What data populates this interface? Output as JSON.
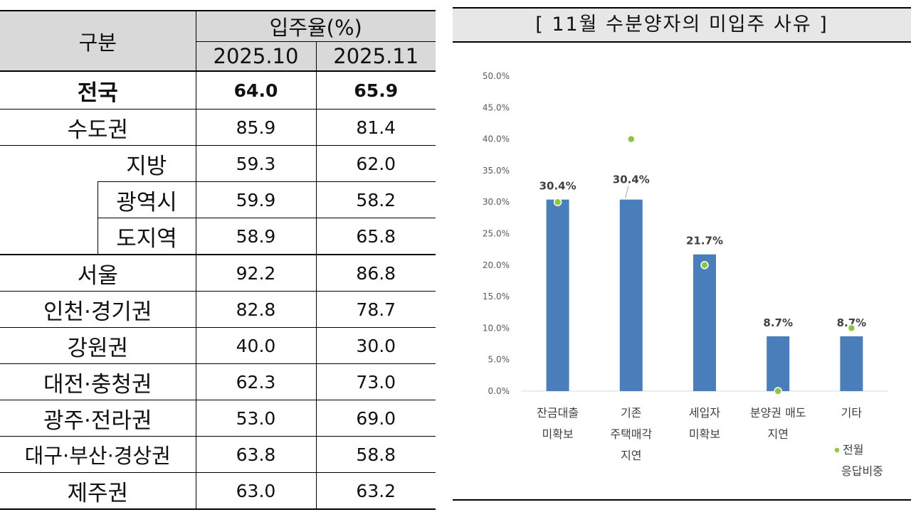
{
  "table": {
    "header_group": "구분",
    "header_rate": "입주율(%)",
    "col1": "2025.10",
    "col2": "2025.11",
    "rows": [
      {
        "label": "전국",
        "v1": "64.0",
        "v2": "65.9"
      },
      {
        "label": "수도권",
        "v1": "85.9",
        "v2": "81.4"
      },
      {
        "label": "지방",
        "v1": "59.3",
        "v2": "62.0"
      },
      {
        "label": "광역시",
        "v1": "59.9",
        "v2": "58.2"
      },
      {
        "label": "도지역",
        "v1": "58.9",
        "v2": "65.8"
      },
      {
        "label": "서울",
        "v1": "92.2",
        "v2": "86.8"
      },
      {
        "label": "인천·경기권",
        "v1": "82.8",
        "v2": "78.7"
      },
      {
        "label": "강원권",
        "v1": "40.0",
        "v2": "30.0"
      },
      {
        "label": "대전·충청권",
        "v1": "62.3",
        "v2": "73.0"
      },
      {
        "label": "광주·전라권",
        "v1": "53.0",
        "v2": "69.0"
      },
      {
        "label": "대구·부산·경상권",
        "v1": "63.8",
        "v2": "58.8"
      },
      {
        "label": "제주권",
        "v1": "63.0",
        "v2": "63.2"
      }
    ]
  },
  "chart_data": {
    "type": "bar",
    "title": "[ 11월 수분양자의 미입주 사유 ]",
    "categories": [
      [
        "잔금대출",
        "미확보"
      ],
      [
        "기존",
        "주택매각",
        "지연"
      ],
      [
        "세입자",
        "미확보"
      ],
      [
        "분양권 매도",
        "지연"
      ],
      [
        "기타"
      ]
    ],
    "series": [
      {
        "values": [
          30.4,
          30.4,
          21.7,
          8.7,
          8.7
        ],
        "labels": [
          "30.4%",
          "30.4%",
          "21.7%",
          "8.7%",
          "8.7%"
        ],
        "color": "#4a7ebb"
      },
      {
        "name": "전월 응답비중",
        "values": [
          30.0,
          40.0,
          20.0,
          0.0,
          10.0
        ],
        "color": "#8dc63f"
      }
    ],
    "legend_lines": [
      "전월",
      "응답비중"
    ],
    "ylim": [
      0,
      50
    ],
    "yticks": [
      "0.0%",
      "5.0%",
      "10.0%",
      "15.0%",
      "20.0%",
      "25.0%",
      "30.0%",
      "35.0%",
      "40.0%",
      "45.0%",
      "50.0%"
    ],
    "legend_position": "bottom-right",
    "grid": false
  }
}
